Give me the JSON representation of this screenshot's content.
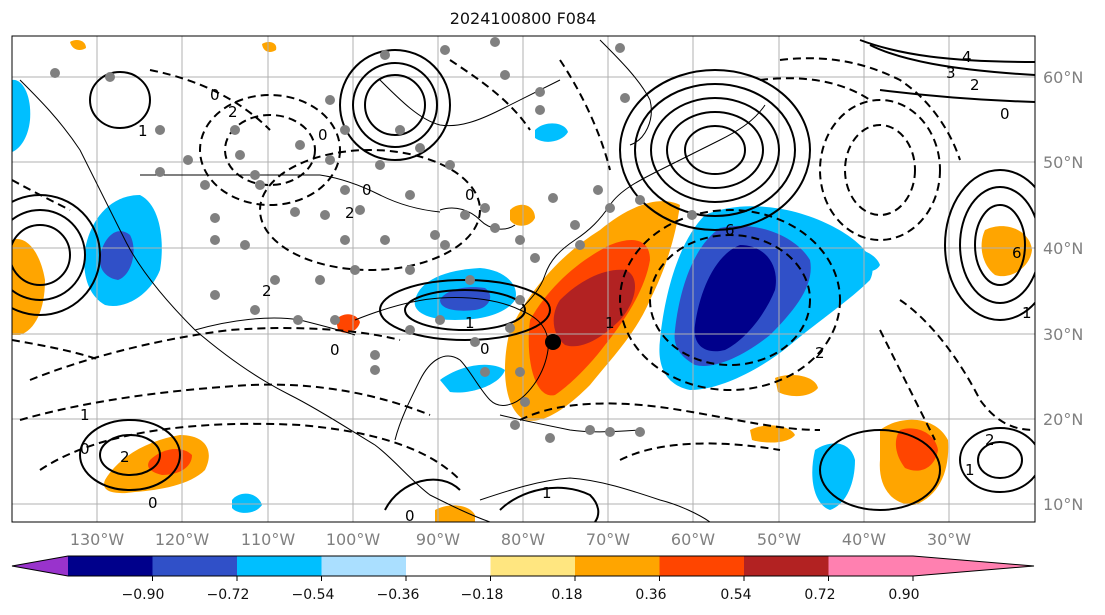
{
  "title": "2024100800 F084",
  "lon_labels": [
    "130°W",
    "120°W",
    "110°W",
    "100°W",
    "90°W",
    "80°W",
    "70°W",
    "60°W",
    "50°W",
    "40°W",
    "30°W"
  ],
  "lat_labels": [
    "60°N",
    "50°N",
    "40°N",
    "30°N",
    "20°N",
    "10°N"
  ],
  "colorbar": {
    "labels": [
      "−0.90",
      "−0.72",
      "−0.54",
      "−0.36",
      "−0.18",
      "0.18",
      "0.36",
      "0.54",
      "0.72",
      "0.90"
    ],
    "colors": [
      "#9933cc",
      "#00008b",
      "#3050c8",
      "#00bfff",
      "#aadfff",
      "#ffffff",
      "#ffe680",
      "#ffa500",
      "#ff4500",
      "#b22222",
      "#ff80b0"
    ]
  },
  "contour_labels": [
    "4",
    "3",
    "2",
    "0",
    "6",
    "1",
    "0",
    "2",
    "0",
    "0",
    "2",
    "0",
    "2",
    "1",
    "0",
    "1",
    "0",
    "1",
    "0",
    "2",
    "6",
    "0",
    "0",
    "1",
    "2",
    "1",
    "1",
    "2"
  ],
  "marker": {
    "name": "storm-position",
    "lon": -76,
    "lat": 29
  }
}
